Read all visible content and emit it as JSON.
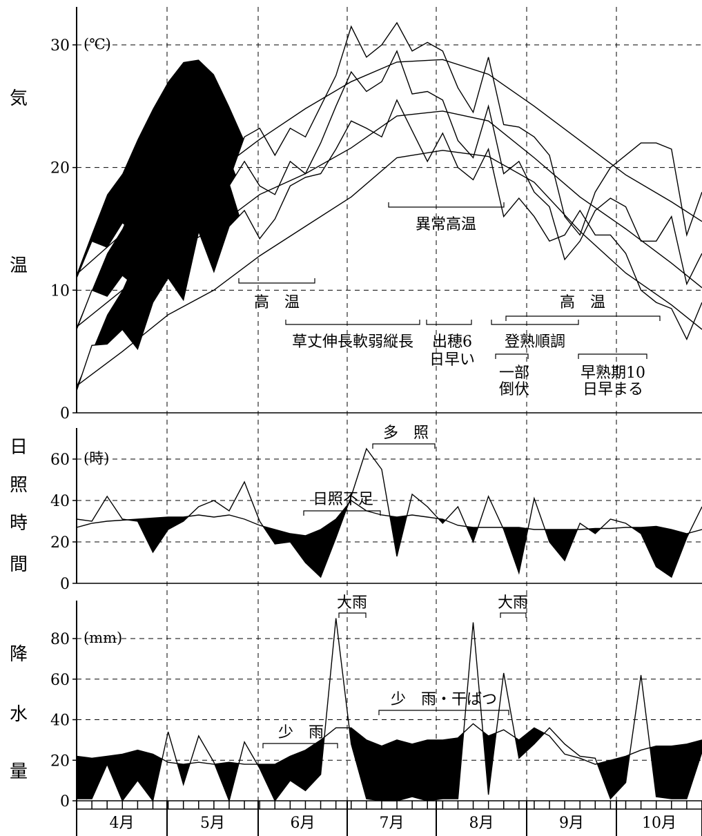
{
  "labels": {
    "temp": [
      "気",
      "温"
    ],
    "sun": [
      "日",
      "照",
      "時",
      "間"
    ],
    "precip": [
      "降",
      "水",
      "量"
    ]
  },
  "months": [
    "4月",
    "5月",
    "6月",
    "7月",
    "8月",
    "9月",
    "10月"
  ],
  "chart_data": [
    {
      "type": "line",
      "id": "temp",
      "ylabel": "気温",
      "unit": "(℃)",
      "ylim": [
        0,
        30
      ],
      "yticks": [
        0,
        10,
        20,
        30
      ],
      "x_unit": "half-month (4月上 = 0 … 10月下 = 41)",
      "normals": [
        {
          "x": [
            0,
            3,
            6,
            9,
            12,
            15,
            18,
            21,
            24,
            27,
            30,
            33,
            36,
            39,
            41
          ],
          "y": [
            11.3,
            14.6,
            17.8,
            19.5,
            22.3,
            24.8,
            27.0,
            28.6,
            28.8,
            27.6,
            25.0,
            22.2,
            19.4,
            17.2,
            15.6
          ]
        },
        {
          "x": [
            0,
            3,
            6,
            9,
            12,
            15,
            18,
            21,
            24,
            27,
            30,
            33,
            36,
            39,
            41
          ],
          "y": [
            7.0,
            10.0,
            13.0,
            15.0,
            17.8,
            19.5,
            21.6,
            24.2,
            24.6,
            23.8,
            20.8,
            17.6,
            15.0,
            12.2,
            10.2
          ]
        },
        {
          "x": [
            0,
            3,
            6,
            9,
            12,
            15,
            18,
            21,
            24,
            27,
            30,
            33,
            36,
            39,
            41
          ],
          "y": [
            2.2,
            5.0,
            8.0,
            10.0,
            12.8,
            15.2,
            17.6,
            20.8,
            21.4,
            20.9,
            18.8,
            14.8,
            11.4,
            8.8,
            6.8
          ]
        }
      ],
      "observed": [
        {
          "x": [
            0,
            1,
            2,
            3,
            4,
            5,
            6,
            7,
            8,
            9,
            10,
            11,
            12,
            13,
            14,
            15,
            16,
            17,
            18,
            19,
            20,
            21,
            22,
            23,
            24,
            25,
            26,
            27,
            28,
            29,
            30,
            31,
            32,
            33,
            34,
            35,
            36,
            37,
            38,
            39,
            40,
            41
          ],
          "y": [
            11.0,
            14.0,
            13.5,
            15.5,
            14.5,
            17.8,
            20.5,
            16.0,
            23.5,
            23.0,
            19.0,
            22.5,
            23.2,
            21.0,
            23.2,
            22.5,
            25.0,
            27.5,
            31.5,
            29.0,
            30.0,
            31.8,
            29.5,
            30.2,
            29.5,
            26.5,
            24.5,
            29.0,
            23.5,
            23.3,
            22.5,
            21.0,
            16.0,
            14.5,
            18.0,
            20.0,
            21.0,
            22.0,
            22.0,
            21.5,
            14.5,
            18.0
          ]
        },
        {
          "x": [
            0,
            1,
            2,
            3,
            4,
            5,
            6,
            7,
            8,
            9,
            10,
            11,
            12,
            13,
            14,
            15,
            16,
            17,
            18,
            19,
            20,
            21,
            22,
            23,
            24,
            25,
            26,
            27,
            28,
            29,
            30,
            31,
            32,
            33,
            34,
            35,
            36,
            37,
            38,
            39,
            40,
            41
          ],
          "y": [
            6.8,
            10.0,
            9.5,
            11.2,
            10.2,
            13.0,
            16.0,
            13.0,
            17.8,
            16.2,
            18.5,
            20.5,
            18.5,
            17.8,
            20.5,
            19.5,
            22.0,
            25.0,
            27.8,
            26.2,
            27.0,
            29.5,
            26.0,
            26.2,
            25.5,
            22.2,
            20.8,
            25.0,
            19.5,
            20.5,
            18.0,
            16.8,
            12.5,
            14.0,
            16.5,
            17.5,
            16.8,
            14.0,
            14.0,
            16.0,
            10.5,
            13.0
          ]
        },
        {
          "x": [
            0,
            1,
            2,
            3,
            4,
            5,
            6,
            7,
            8,
            9,
            10,
            11,
            12,
            13,
            14,
            15,
            16,
            17,
            18,
            19,
            20,
            21,
            22,
            23,
            24,
            25,
            26,
            27,
            28,
            29,
            30,
            31,
            32,
            33,
            34,
            35,
            36,
            37,
            38,
            39,
            40,
            41
          ],
          "y": [
            1.8,
            5.5,
            5.6,
            6.8,
            5.2,
            9.0,
            11.0,
            9.2,
            14.8,
            11.5,
            15.2,
            16.5,
            14.2,
            15.8,
            18.5,
            19.2,
            19.5,
            21.5,
            23.8,
            23.2,
            22.5,
            25.5,
            23.0,
            20.5,
            22.8,
            20.0,
            19.0,
            21.5,
            16.0,
            17.5,
            16.0,
            14.0,
            14.5,
            16.5,
            14.5,
            14.5,
            13.0,
            10.0,
            9.0,
            8.5,
            6.0,
            9.0
          ]
        }
      ],
      "annotations": [
        {
          "text": "高　温",
          "x": [
            8.2,
            12.5
          ]
        },
        {
          "text": "草丈伸長軟弱縦長",
          "x": [
            11,
            19
          ]
        },
        {
          "text": "異常高温",
          "x": [
            17,
            24
          ]
        },
        {
          "text": "出穂6",
          "text2": "日早い",
          "x": [
            19.5,
            22
          ]
        },
        {
          "text": "登熟順調",
          "x": [
            23,
            28
          ]
        },
        {
          "text": "高　温",
          "x": [
            24,
            32
          ]
        },
        {
          "text": "一部",
          "text2": "倒伏",
          "x": [
            23.3,
            25
          ]
        },
        {
          "text": "早熟期10",
          "text2": "日早まる",
          "x": [
            28,
            34
          ]
        }
      ]
    },
    {
      "type": "line",
      "id": "sunshine",
      "ylabel": "日照時間",
      "unit": "(時)",
      "ylim": [
        0,
        60
      ],
      "yticks": [
        0,
        20,
        40,
        60
      ],
      "normal": {
        "x": [
          0,
          1,
          2,
          3,
          4,
          5,
          6,
          7,
          8,
          9,
          10,
          11,
          12,
          13,
          14,
          15,
          16,
          17,
          18,
          19,
          20,
          21,
          22,
          23,
          24,
          25,
          26,
          27,
          28,
          29,
          30,
          31,
          32,
          33,
          34,
          35,
          36,
          37,
          38,
          39,
          40,
          41
        ],
        "y": [
          27.0,
          29.0,
          30.0,
          30.5,
          31.0,
          31.5,
          32.0,
          32.0,
          33.0,
          32.0,
          33.0,
          31.0,
          28.0,
          26.0,
          24.0,
          23.0,
          26.0,
          31.0,
          40.0,
          35.0,
          33.0,
          32.0,
          33.0,
          32.0,
          31.0,
          28.0,
          27.0,
          27.0,
          27.0,
          27.0,
          26.0,
          26.0,
          26.0,
          26.0,
          26.5,
          26.5,
          27.0,
          27.0,
          27.5,
          26.0,
          24.0,
          26.0
        ]
      },
      "observed": {
        "x": [
          0,
          1,
          2,
          3,
          4,
          5,
          6,
          7,
          8,
          9,
          10,
          11,
          12,
          13,
          14,
          15,
          16,
          17,
          18,
          19,
          20,
          21,
          22,
          23,
          24,
          25,
          26,
          27,
          28,
          29,
          30,
          31,
          32,
          33,
          34,
          35,
          36,
          37,
          38,
          39,
          40,
          41
        ],
        "y": [
          31.0,
          30.0,
          42.0,
          31.0,
          30.0,
          15.0,
          26.0,
          30.0,
          37.0,
          40.0,
          35.0,
          49.0,
          30.0,
          19.0,
          20.0,
          10.0,
          3.0,
          22.0,
          42.0,
          65.0,
          55.0,
          13.0,
          43.0,
          37.0,
          29.0,
          37.0,
          20.0,
          42.0,
          26.0,
          5.0,
          41.0,
          20.0,
          11.0,
          29.0,
          24.0,
          31.0,
          29.0,
          24.0,
          8.0,
          3.0,
          22.0,
          37.0
        ]
      },
      "annotations": [
        {
          "text": "多　照",
          "x": [
            16.5,
            19.5
          ]
        },
        {
          "text": "日照不足",
          "x": [
            12.5,
            17.3
          ]
        }
      ]
    },
    {
      "type": "line",
      "id": "precipitation",
      "ylabel": "降水量",
      "unit": "(mm)",
      "ylim": [
        0,
        80
      ],
      "yticks": [
        0,
        20,
        40,
        60,
        80
      ],
      "normal": {
        "x": [
          0,
          1,
          2,
          3,
          4,
          5,
          6,
          7,
          8,
          9,
          10,
          11,
          12,
          13,
          14,
          15,
          16,
          17,
          18,
          19,
          20,
          21,
          22,
          23,
          24,
          25,
          26,
          27,
          28,
          29,
          30,
          31,
          32,
          33,
          34,
          35,
          36,
          37,
          38,
          39,
          40,
          41
        ],
        "y": [
          22.0,
          21.0,
          22.0,
          23.0,
          25.0,
          23.0,
          19.0,
          18.0,
          19.0,
          18.0,
          19.0,
          18.0,
          18.0,
          18.0,
          22.0,
          25.0,
          30.0,
          36.0,
          36.0,
          30.0,
          27.0,
          30.0,
          28.0,
          30.0,
          30.0,
          31.0,
          38.0,
          32.0,
          35.0,
          30.0,
          36.0,
          32.0,
          23.0,
          21.0,
          18.0,
          20.0,
          22.0,
          25.0,
          27.0,
          27.0,
          28.0,
          30.0
        ]
      },
      "observed": {
        "x": [
          0,
          1,
          2,
          3,
          4,
          5,
          6,
          7,
          8,
          9,
          10,
          11,
          12,
          13,
          14,
          15,
          16,
          17,
          18,
          19,
          20,
          21,
          22,
          23,
          24,
          25,
          26,
          27,
          28,
          29,
          30,
          31,
          32,
          33,
          34,
          35,
          36,
          37,
          38,
          39,
          40,
          41
        ],
        "y": [
          1.0,
          1.0,
          18.0,
          0.0,
          10.0,
          0.0,
          34.0,
          8.0,
          32.0,
          19.0,
          0.0,
          29.0,
          16.0,
          0.0,
          10.0,
          5.0,
          13.0,
          90.0,
          28.0,
          1.0,
          0.0,
          0.0,
          2.0,
          0.0,
          1.0,
          1.0,
          88.0,
          3.0,
          63.0,
          21.0,
          28.0,
          36.0,
          28.0,
          22.0,
          21.0,
          1.0,
          9.0,
          62.0,
          2.0,
          1.0,
          1.0,
          24.0
        ]
      },
      "annotations": [
        {
          "text": "大雨",
          "x": [
            16.8,
            18.8
          ]
        },
        {
          "text": "大雨",
          "x": [
            25.8,
            27.6
          ]
        },
        {
          "text": "少　雨",
          "x": [
            10.4,
            15
          ]
        },
        {
          "text": "少　雨・干ばつ",
          "x": [
            18.2,
            24.3
          ]
        }
      ]
    }
  ]
}
